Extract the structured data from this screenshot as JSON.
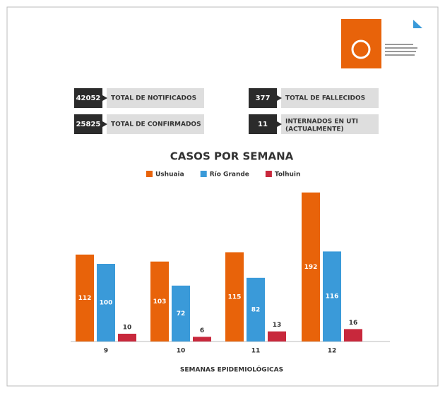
{
  "stats": [
    {
      "value": "42052",
      "label": "TOTAL DE NOTIFICADOS"
    },
    {
      "value": "377",
      "label": "TOTAL DE FALLECIDOS"
    },
    {
      "value": "25825",
      "label": "TOTAL DE CONFIRMADOS"
    },
    {
      "value": "11",
      "label": "INTERNADOS EN UTI",
      "note": "(ACTUALMENTE)"
    }
  ],
  "chart_data": {
    "type": "bar",
    "title": "CASOS POR SEMANA",
    "x_label": "SEMANAS EPIDEMIOLÓGICAS",
    "categories": [
      "9",
      "10",
      "11",
      "12"
    ],
    "series": [
      {
        "name": "Ushuaia",
        "color": "#e8630a",
        "values": [
          112,
          103,
          115,
          192
        ]
      },
      {
        "name": "Río Grande",
        "color": "#3a9ad9",
        "values": [
          100,
          72,
          82,
          116
        ]
      },
      {
        "name": "Tolhuin",
        "color": "#c8283c",
        "values": [
          10,
          6,
          13,
          16
        ]
      }
    ],
    "ylim": [
      0,
      200
    ]
  }
}
